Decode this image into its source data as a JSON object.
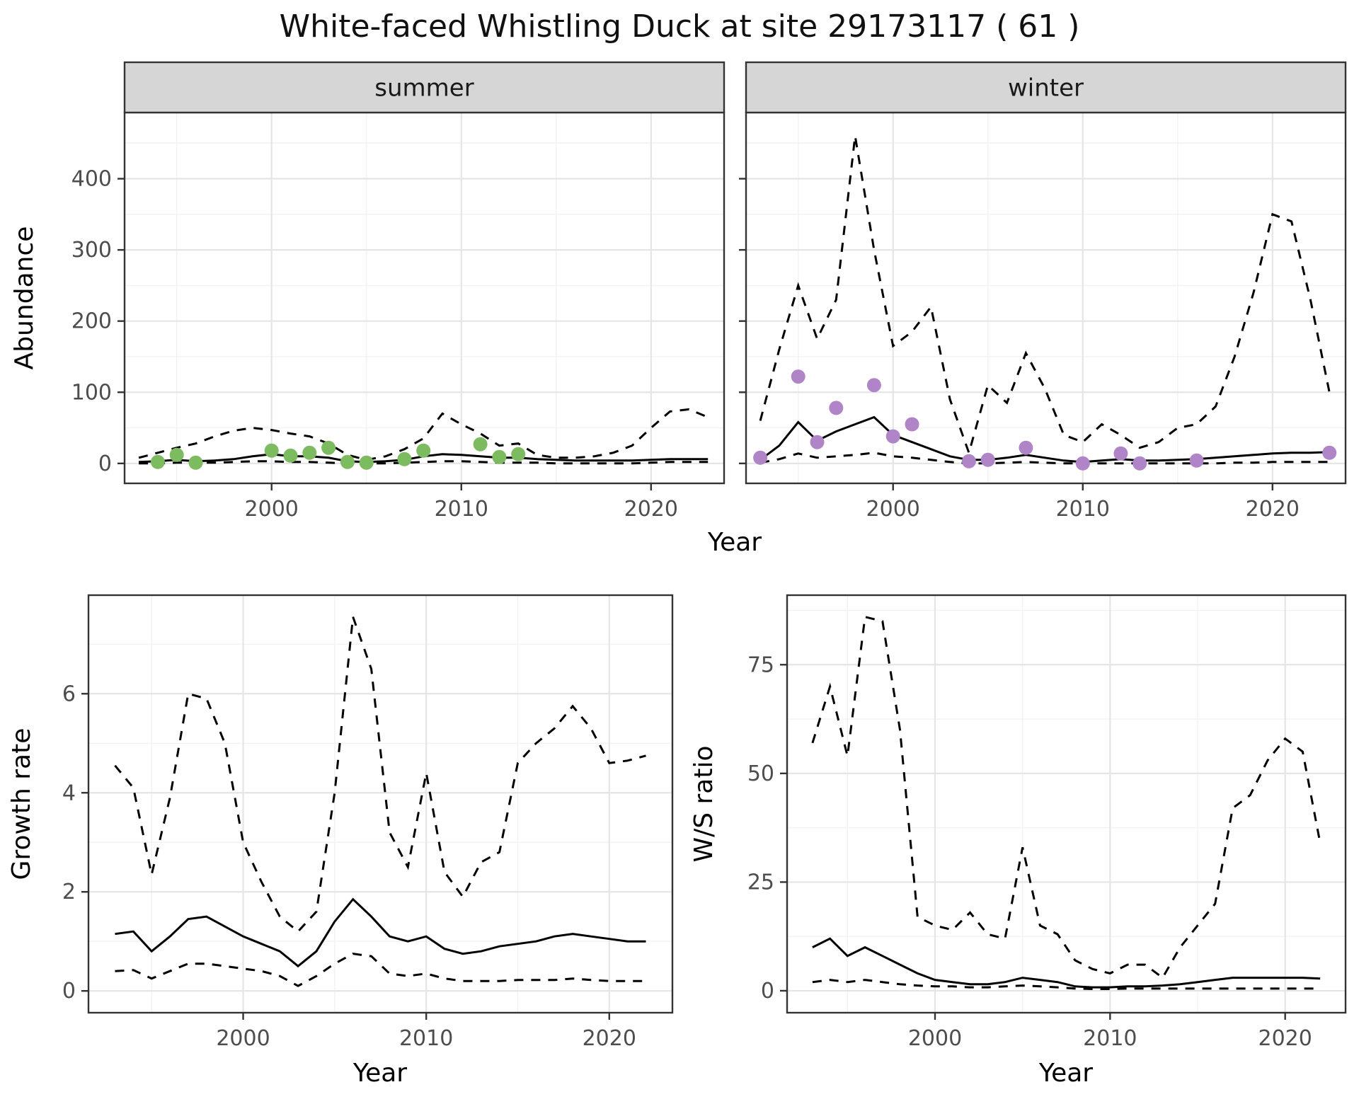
{
  "title": "White-faced Whistling Duck at site 29173117 ( 61 )",
  "colors": {
    "line": "#000000",
    "border": "#333333",
    "strip_bg": "#d6d6d6",
    "grid_major": "#e5e5e5",
    "grid_minor": "#f2f2f2",
    "tick_text": "#4d4d4d",
    "summer_points": "#7cbb5f",
    "winter_points": "#b085c7"
  },
  "chart_data": [
    {
      "type": "line",
      "facet_label": "summer",
      "xlabel": "Year",
      "ylabel": "Abundance",
      "xlim": [
        1992.25,
        2023.85
      ],
      "ylim": [
        -28,
        493
      ],
      "xticks": [
        2000,
        2010,
        2020
      ],
      "yticks": [
        0,
        100,
        200,
        300,
        400
      ],
      "grid": true,
      "legend": "none",
      "x": [
        1993,
        1994,
        1995,
        1996,
        1997,
        1998,
        1999,
        2000,
        2001,
        2002,
        2003,
        2004,
        2005,
        2006,
        2007,
        2008,
        2009,
        2010,
        2011,
        2012,
        2013,
        2014,
        2015,
        2016,
        2017,
        2018,
        2019,
        2020,
        2021,
        2022,
        2023
      ],
      "series": [
        {
          "name": "median",
          "style": "solid",
          "values": [
            2,
            3,
            5,
            3,
            4,
            6,
            10,
            13,
            10,
            10,
            8,
            3,
            2,
            3,
            5,
            10,
            13,
            12,
            10,
            8,
            8,
            6,
            5,
            4,
            4,
            4,
            4,
            5,
            6,
            6,
            6
          ]
        },
        {
          "name": "upper-ci",
          "style": "dashed",
          "values": [
            8,
            15,
            22,
            28,
            38,
            46,
            50,
            47,
            42,
            38,
            28,
            12,
            5,
            10,
            20,
            35,
            70,
            55,
            42,
            25,
            28,
            12,
            8,
            8,
            10,
            15,
            25,
            50,
            73,
            76,
            65
          ]
        },
        {
          "name": "lower-ci",
          "style": "dashed",
          "values": [
            0,
            0,
            1,
            1,
            1,
            2,
            3,
            3,
            2,
            2,
            1,
            0,
            0,
            0,
            1,
            2,
            3,
            3,
            2,
            1,
            1,
            1,
            0,
            0,
            0,
            0,
            0,
            1,
            2,
            2,
            2
          ]
        }
      ],
      "points": {
        "color": "#7cbb5f",
        "x": [
          1994,
          1995,
          1996,
          2000,
          2001,
          2002,
          2003,
          2004,
          2005,
          2007,
          2008,
          2011,
          2012,
          2013
        ],
        "y": [
          2,
          12,
          1,
          18,
          11,
          15,
          22,
          2,
          1,
          6,
          18,
          27,
          9,
          13
        ]
      }
    },
    {
      "type": "line",
      "facet_label": "winter",
      "xlabel": "Year",
      "ylabel": "Abundance",
      "xlim": [
        1992.25,
        2023.85
      ],
      "ylim": [
        -28,
        493
      ],
      "xticks": [
        2000,
        2010,
        2020
      ],
      "yticks": [
        0,
        100,
        200,
        300,
        400
      ],
      "grid": true,
      "legend": "none",
      "x": [
        1993,
        1994,
        1995,
        1996,
        1997,
        1998,
        1999,
        2000,
        2001,
        2002,
        2003,
        2004,
        2005,
        2006,
        2007,
        2008,
        2009,
        2010,
        2011,
        2012,
        2013,
        2014,
        2015,
        2016,
        2017,
        2018,
        2019,
        2020,
        2021,
        2022,
        2023
      ],
      "series": [
        {
          "name": "median",
          "style": "solid",
          "values": [
            5,
            25,
            58,
            32,
            45,
            55,
            65,
            40,
            30,
            20,
            10,
            5,
            5,
            8,
            12,
            8,
            4,
            2,
            4,
            6,
            4,
            4,
            5,
            6,
            8,
            10,
            12,
            14,
            15,
            15,
            16
          ]
        },
        {
          "name": "upper-ci",
          "style": "dashed",
          "values": [
            60,
            160,
            250,
            175,
            230,
            460,
            300,
            165,
            185,
            220,
            90,
            15,
            110,
            85,
            155,
            105,
            40,
            30,
            55,
            40,
            22,
            30,
            50,
            55,
            80,
            150,
            240,
            350,
            340,
            230,
            100
          ]
        },
        {
          "name": "lower-ci",
          "style": "dashed",
          "values": [
            1,
            6,
            14,
            8,
            10,
            12,
            15,
            10,
            8,
            5,
            2,
            0,
            0,
            1,
            2,
            1,
            0,
            0,
            0,
            0,
            0,
            0,
            0,
            0,
            0,
            1,
            1,
            2,
            2,
            2,
            2
          ]
        }
      ],
      "points": {
        "color": "#b085c7",
        "x": [
          1993,
          1995,
          1996,
          1997,
          1999,
          2000,
          2001,
          2004,
          2005,
          2007,
          2010,
          2012,
          2013,
          2016,
          2023
        ],
        "y": [
          8,
          122,
          30,
          78,
          110,
          38,
          55,
          3,
          5,
          22,
          0,
          14,
          0,
          4,
          15
        ]
      }
    },
    {
      "type": "line",
      "facet_label": "",
      "xlabel": "Year",
      "ylabel": "Growth rate",
      "xlim": [
        1991.55,
        2023.45
      ],
      "ylim": [
        -0.44,
        7.99
      ],
      "xticks": [
        2000,
        2010,
        2020
      ],
      "yticks": [
        0,
        2,
        4,
        6
      ],
      "grid": true,
      "legend": "none",
      "x": [
        1993,
        1994,
        1995,
        1996,
        1997,
        1998,
        1999,
        2000,
        2001,
        2002,
        2003,
        2004,
        2005,
        2006,
        2007,
        2008,
        2009,
        2010,
        2011,
        2012,
        2013,
        2014,
        2015,
        2016,
        2017,
        2018,
        2019,
        2020,
        2021,
        2022
      ],
      "series": [
        {
          "name": "median",
          "style": "solid",
          "values": [
            1.15,
            1.2,
            0.8,
            1.1,
            1.45,
            1.5,
            1.3,
            1.1,
            0.95,
            0.8,
            0.5,
            0.8,
            1.4,
            1.85,
            1.5,
            1.1,
            1.0,
            1.1,
            0.85,
            0.75,
            0.8,
            0.9,
            0.95,
            1.0,
            1.1,
            1.15,
            1.1,
            1.05,
            1.0,
            1.0
          ]
        },
        {
          "name": "upper-ci",
          "style": "dashed",
          "values": [
            4.55,
            4.1,
            2.35,
            3.9,
            6.0,
            5.9,
            5.0,
            3.0,
            2.2,
            1.5,
            1.2,
            1.6,
            4.0,
            7.55,
            6.5,
            3.2,
            2.5,
            4.4,
            2.4,
            1.9,
            2.6,
            2.8,
            4.6,
            5.0,
            5.3,
            5.75,
            5.3,
            4.6,
            4.65,
            4.75
          ]
        },
        {
          "name": "lower-ci",
          "style": "dashed",
          "values": [
            0.4,
            0.42,
            0.25,
            0.4,
            0.55,
            0.55,
            0.5,
            0.45,
            0.4,
            0.3,
            0.1,
            0.3,
            0.55,
            0.75,
            0.7,
            0.35,
            0.3,
            0.35,
            0.25,
            0.2,
            0.2,
            0.2,
            0.22,
            0.22,
            0.22,
            0.25,
            0.22,
            0.2,
            0.2,
            0.2
          ]
        }
      ]
    },
    {
      "type": "line",
      "facet_label": "",
      "xlabel": "Year",
      "ylabel": "W/S ratio",
      "xlim": [
        1991.55,
        2023.45
      ],
      "ylim": [
        -5.05,
        91
      ],
      "xticks": [
        2000,
        2010,
        2020
      ],
      "yticks": [
        0,
        25,
        50,
        75
      ],
      "grid": true,
      "legend": "none",
      "x": [
        1993,
        1994,
        1995,
        1996,
        1997,
        1998,
        1999,
        2000,
        2001,
        2002,
        2003,
        2004,
        2005,
        2006,
        2007,
        2008,
        2009,
        2010,
        2011,
        2012,
        2013,
        2014,
        2015,
        2016,
        2017,
        2018,
        2019,
        2020,
        2021,
        2022
      ],
      "series": [
        {
          "name": "median",
          "style": "solid",
          "values": [
            10,
            12,
            8,
            10,
            8,
            6,
            4,
            2.5,
            2,
            1.5,
            1.5,
            2,
            3,
            2.5,
            2,
            1,
            0.8,
            0.8,
            1,
            1,
            1.2,
            1.5,
            2,
            2.5,
            3,
            3,
            3,
            3,
            3,
            2.8
          ]
        },
        {
          "name": "upper-ci",
          "style": "dashed",
          "values": [
            57,
            70,
            54,
            86,
            85,
            60,
            17,
            15,
            14,
            18,
            13,
            12,
            33,
            15,
            13,
            7,
            5,
            4,
            6,
            6,
            3,
            10,
            15,
            20,
            42,
            45,
            53,
            58,
            55,
            34
          ]
        },
        {
          "name": "lower-ci",
          "style": "dashed",
          "values": [
            2,
            2.5,
            2,
            2.5,
            2,
            1.5,
            1.2,
            1,
            1,
            0.8,
            0.8,
            1,
            1.2,
            1,
            0.8,
            0.5,
            0.4,
            0.4,
            0.5,
            0.5,
            0.5,
            0.5,
            0.5,
            0.5,
            0.5,
            0.5,
            0.5,
            0.5,
            0.5,
            0.5
          ]
        }
      ]
    }
  ]
}
